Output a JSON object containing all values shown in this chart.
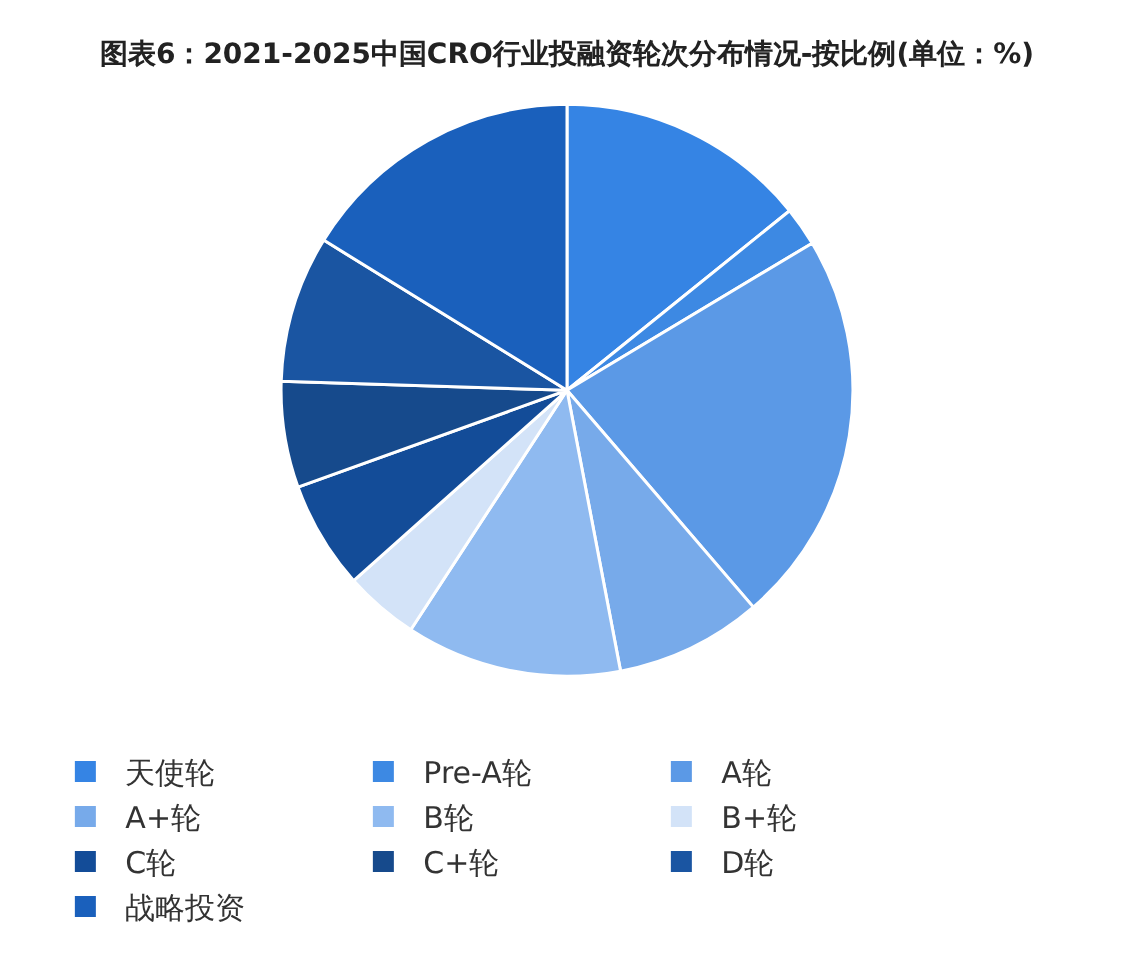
{
  "chart_data": {
    "type": "pie",
    "title": "图表6：2021-2025中国CRO行业投融资轮次分布情况-按比例(单位：%)",
    "categories": [
      "天使轮",
      "Pre-A轮",
      "A轮",
      "A+轮",
      "B轮",
      "B+轮",
      "C轮",
      "C+轮",
      "D轮",
      "战略投资"
    ],
    "values": [
      14.2,
      2.2,
      22.3,
      8.3,
      12.2,
      4.2,
      6.1,
      6.0,
      8.3,
      16.2
    ],
    "colors": [
      "#3584e4",
      "#3d89e3",
      "#5b99e6",
      "#77aaea",
      "#8fbaf0",
      "#d3e3f8",
      "#134c98",
      "#164a8c",
      "#1a55a2",
      "#1a60bc"
    ],
    "legend": "bottom"
  }
}
